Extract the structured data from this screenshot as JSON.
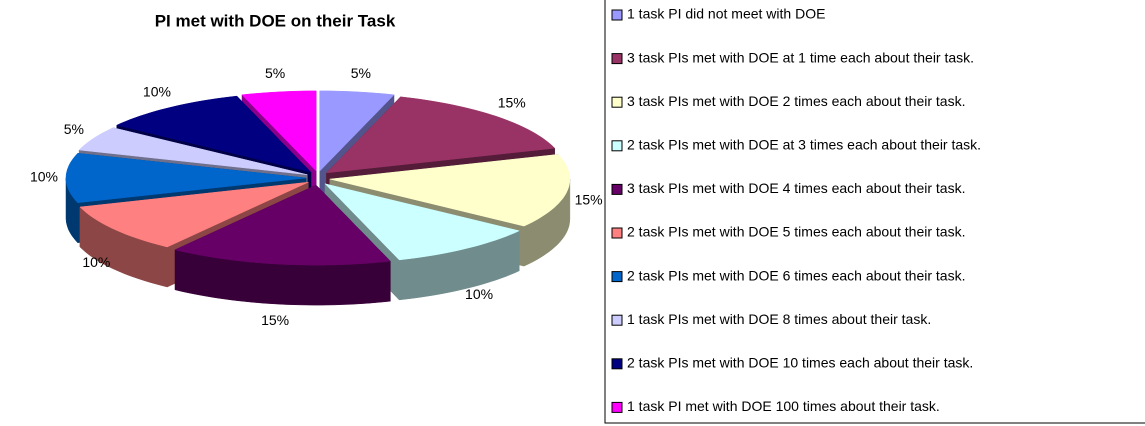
{
  "chart_data": {
    "type": "pie3d",
    "title": "PI met with DOE on their Task",
    "categories": [
      "1 task PI did not meet with DOE",
      "3 task PIs met with DOE at 1 time each about their task.",
      "3 task PIs met with DOE 2 times each about their task.",
      "2 task PIs met with DOE at 3 times each about their task.",
      "3 task PIs met with DOE 4 times each about their task.",
      "2 task PIs met with DOE 5 times each about their task.",
      "2 task PIs met with DOE 6 times each about their task.",
      "1 task PIs met with DOE 8 times about their task.",
      "2 task PIs met with DOE 10 times each about their task.",
      "1 task PI met with DOE 100 times about their task."
    ],
    "values": [
      5,
      15,
      15,
      10,
      15,
      10,
      10,
      5,
      10,
      5
    ],
    "value_labels": [
      "5%",
      "15%",
      "15%",
      "10%",
      "15%",
      "10%",
      "10%",
      "5%",
      "10%",
      "5%"
    ],
    "colors": [
      "#9999ff",
      "#993366",
      "#ffffcc",
      "#ccffff",
      "#660066",
      "#ff8080",
      "#0066cc",
      "#ccccff",
      "#000080",
      "#ff00ff"
    ],
    "legend": "right"
  }
}
